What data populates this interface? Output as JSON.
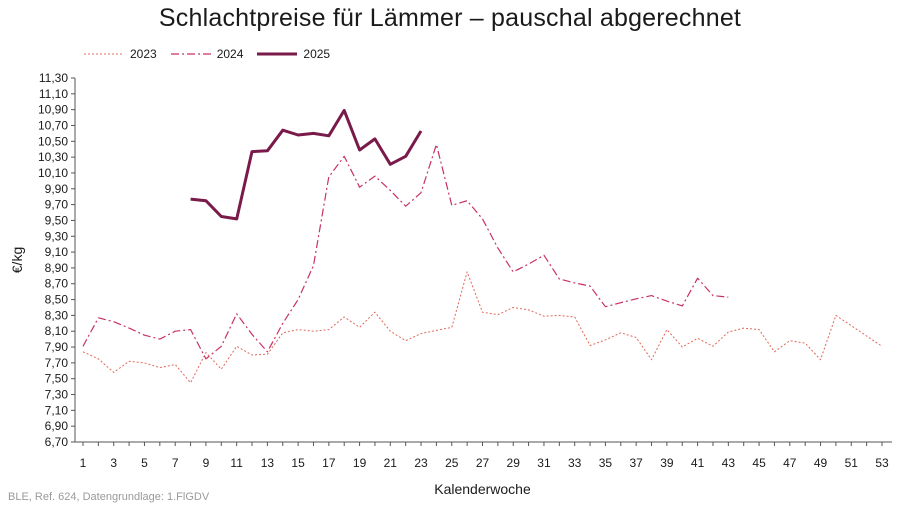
{
  "chart_data": {
    "type": "line",
    "title": "Schlachtpreise für Lämmer – pauschal abgerechnet",
    "xlabel": "Kalenderwoche",
    "ylabel": "€/kg",
    "xlim": [
      1,
      53
    ],
    "ylim": [
      6.7,
      11.3
    ],
    "y_ticks": [
      "6,70",
      "6,90",
      "7,10",
      "7,30",
      "7,50",
      "7,70",
      "7,90",
      "8,10",
      "8,30",
      "8,50",
      "8,70",
      "8,90",
      "9,10",
      "9,30",
      "9,50",
      "9,70",
      "9,90",
      "10,10",
      "10,30",
      "10,50",
      "10,70",
      "10,90",
      "11,10",
      "11,30"
    ],
    "x_ticks": [
      "1",
      "3",
      "5",
      "7",
      "9",
      "11",
      "13",
      "15",
      "17",
      "19",
      "21",
      "23",
      "25",
      "27",
      "29",
      "31",
      "33",
      "35",
      "37",
      "39",
      "41",
      "43",
      "45",
      "47",
      "49",
      "51",
      "53"
    ],
    "grid": false,
    "legend_position": "top-left",
    "series": [
      {
        "name": "2023",
        "color": "#e0685a",
        "style": "dotted",
        "x": [
          1,
          2,
          3,
          4,
          5,
          6,
          7,
          8,
          9,
          10,
          11,
          12,
          13,
          14,
          15,
          16,
          17,
          18,
          19,
          20,
          21,
          22,
          23,
          24,
          25,
          26,
          27,
          28,
          29,
          30,
          31,
          32,
          33,
          34,
          35,
          36,
          37,
          38,
          39,
          40,
          41,
          42,
          43,
          44,
          45,
          46,
          47,
          48,
          49,
          50,
          51,
          52,
          53
        ],
        "values": [
          7.84,
          7.75,
          7.58,
          7.72,
          7.7,
          7.64,
          7.68,
          7.45,
          7.83,
          7.62,
          7.91,
          7.8,
          7.81,
          8.08,
          8.12,
          8.1,
          8.12,
          8.28,
          8.15,
          8.34,
          8.1,
          7.98,
          8.07,
          8.11,
          8.15,
          8.85,
          8.34,
          8.31,
          8.4,
          8.37,
          8.29,
          8.3,
          8.28,
          7.92,
          7.99,
          8.08,
          8.02,
          7.74,
          8.12,
          7.9,
          8.01,
          7.91,
          8.09,
          8.14,
          8.12,
          7.84,
          7.98,
          7.95,
          7.74,
          8.3,
          8.17,
          8.04,
          7.91
        ]
      },
      {
        "name": "2024",
        "color": "#c8306a",
        "style": "dashdot",
        "x": [
          1,
          2,
          3,
          4,
          5,
          6,
          7,
          8,
          9,
          10,
          11,
          12,
          13,
          14,
          15,
          16,
          17,
          18,
          19,
          20,
          21,
          22,
          23,
          24,
          25,
          26,
          27,
          28,
          29,
          30,
          31,
          32,
          33,
          34,
          35,
          36,
          37,
          38,
          39,
          40,
          41,
          42,
          43
        ],
        "values": [
          7.91,
          8.27,
          8.22,
          8.14,
          8.05,
          8.0,
          8.1,
          8.12,
          7.75,
          7.91,
          8.32,
          8.06,
          7.84,
          8.2,
          8.5,
          8.93,
          10.05,
          10.31,
          9.92,
          10.06,
          9.88,
          9.68,
          9.85,
          10.46,
          9.69,
          9.75,
          9.52,
          9.15,
          8.85,
          8.95,
          9.06,
          8.76,
          8.71,
          8.67,
          8.41,
          8.46,
          8.51,
          8.55,
          8.48,
          8.42,
          8.77,
          8.55,
          8.53
        ]
      },
      {
        "name": "2025",
        "color": "#7a1a4a",
        "style": "solid",
        "x": [
          8,
          9,
          10,
          11,
          12,
          13,
          14,
          15,
          16,
          17,
          18,
          19,
          20,
          21,
          22,
          23
        ],
        "values": [
          9.77,
          9.75,
          9.55,
          9.52,
          10.37,
          10.38,
          10.64,
          10.58,
          10.6,
          10.57,
          10.89,
          10.39,
          10.53,
          10.21,
          10.31,
          10.63
        ]
      }
    ]
  },
  "source_note": "BLE, Ref. 624, Datengrundlage: 1.FlGDV"
}
